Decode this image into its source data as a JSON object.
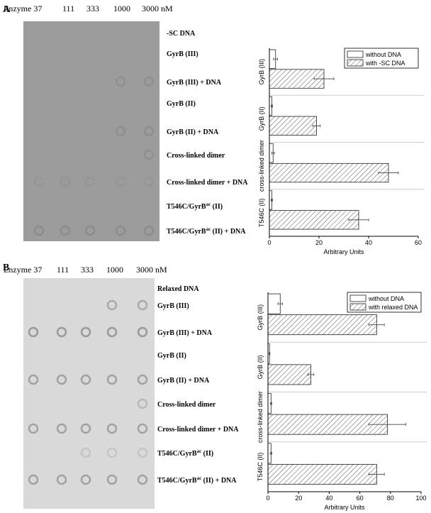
{
  "panels": [
    {
      "label": "A",
      "header": [
        "Enzyme 37",
        "111",
        "333",
        "1000",
        "3000 nM"
      ],
      "rows": [
        [
          "-SC DNA"
        ],
        [
          "GyrB (III)"
        ],
        [
          "GyrB (III) + DNA"
        ],
        [
          "GyrB (II)"
        ],
        [
          "GyrB (II) + DNA"
        ],
        [
          "Cross-linked dimer"
        ],
        [
          "Cross-linked dimer + DNA"
        ],
        [
          "T546C/GyrB",
          "ac",
          " (II)"
        ],
        [
          "T546C/GyrB",
          "ac",
          " (II) + DNA"
        ]
      ]
    },
    {
      "label": "B",
      "header": [
        "Enzyme 37",
        "111",
        "333",
        "1000",
        "3000 nM"
      ],
      "rows": [
        [
          "Relaxed DNA"
        ],
        [
          "GyrB (III)"
        ],
        [
          "GyrB (III) + DNA"
        ],
        [
          "GyrB (II)"
        ],
        [
          "GyrB (II) + DNA"
        ],
        [
          "Cross-linked dimer"
        ],
        [
          "Cross-linked dimer + DNA"
        ],
        [
          "T546C/GyrB",
          "ac",
          " (II)"
        ],
        [
          "T546C/GyrB",
          "ac",
          " (II) + DNA"
        ]
      ]
    }
  ],
  "chart_data": [
    {
      "type": "hbar",
      "categories": [
        "GyrB (III)",
        "GyrB (II)",
        "cross-linked dimer",
        "T546C (II)"
      ],
      "series": [
        {
          "name": "without DNA",
          "color": "#ffffff",
          "values": [
            2.5,
            1,
            1.5,
            1
          ],
          "errors": [
            0.8,
            0.3,
            0.5,
            0.3
          ]
        },
        {
          "name": "with -SC DNA",
          "color": "hatch",
          "values": [
            22,
            19,
            48,
            36
          ],
          "errors": [
            4,
            1.5,
            4,
            4
          ]
        }
      ],
      "xlabel": "Arbitrary Units",
      "xlim": [
        0,
        60
      ],
      "xticks": [
        0,
        20,
        40,
        60
      ],
      "legend": "upper right"
    },
    {
      "type": "hbar",
      "categories": [
        "GyrB (III)",
        "GyrB (II)",
        "cross-linked dimer",
        "T546C (II)"
      ],
      "series": [
        {
          "name": "without DNA",
          "color": "#ffffff",
          "values": [
            8,
            1,
            2,
            2
          ],
          "errors": [
            1.5,
            0.3,
            0.5,
            0.5
          ]
        },
        {
          "name": "with relaxed DNA",
          "color": "hatch",
          "values": [
            71,
            28,
            78,
            71
          ],
          "errors": [
            5,
            2,
            12,
            5
          ]
        }
      ],
      "xlabel": "Arbitrary Units",
      "xlim": [
        0,
        100
      ],
      "xticks": [
        0,
        20,
        40,
        60,
        80,
        100
      ],
      "legend": "upper right"
    }
  ]
}
